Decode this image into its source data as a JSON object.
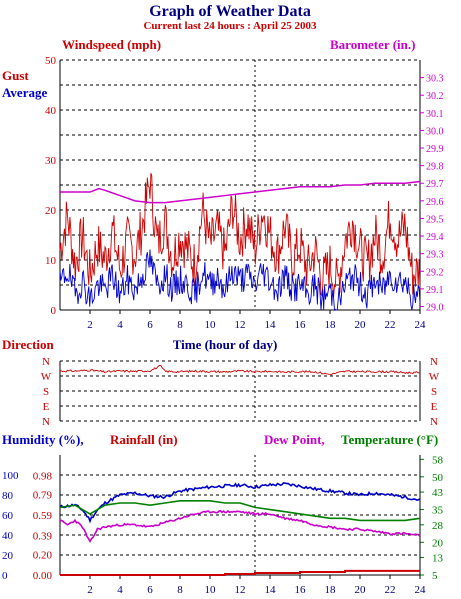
{
  "title": "Graph of Weather Data",
  "subtitle": "Current last 24 hours : April 25 2003",
  "colors": {
    "gust": "#cc0000",
    "average": "#0000cc",
    "barometer": "#cc00cc",
    "direction": "#cc0000",
    "humidity": "#0000cc",
    "rainfall": "#cc0000",
    "dew_point": "#cc00cc",
    "temperature": "#008000",
    "grid": "#000000"
  },
  "chart_data": [
    {
      "type": "line",
      "labels": {
        "left": "Windspeed (mph)",
        "right": "Barometer (in.)",
        "series_gust": "Gust",
        "series_average": "Average",
        "x_axis": "Time (hour of day)"
      },
      "x_ticks": [
        "2",
        "4",
        "6",
        "8",
        "10",
        "12",
        "14",
        "16",
        "18",
        "20",
        "22",
        "24"
      ],
      "xlim": [
        0,
        24
      ],
      "left_ticks": [
        "0",
        "10",
        "20",
        "30",
        "40",
        "50"
      ],
      "ylim_left": [
        0,
        50
      ],
      "right_ticks": [
        "29.0",
        "29.1",
        "29.2",
        "29.3",
        "29.4",
        "29.5",
        "29.6",
        "29.7",
        "29.8",
        "29.9",
        "30.0",
        "30.1",
        "30.2",
        "30.3"
      ],
      "ylim_right": [
        28.98,
        30.4
      ],
      "series": [
        {
          "name": "Gust",
          "x": [
            0,
            0.5,
            1,
            1.5,
            2,
            2.5,
            3,
            3.5,
            4,
            4.5,
            5,
            5.5,
            6,
            6.5,
            7,
            7.5,
            8,
            8.5,
            9,
            9.5,
            10,
            10.5,
            11,
            11.5,
            12,
            12.5,
            13,
            13.5,
            14,
            14.5,
            15,
            15.5,
            16,
            16.5,
            17,
            17.5,
            18,
            18.5,
            19,
            19.5,
            20,
            20.5,
            21,
            21.5,
            22,
            22.5,
            23,
            23.5,
            24
          ],
          "values": [
            12,
            19,
            9,
            15,
            7,
            13,
            10,
            16,
            8,
            14,
            11,
            17,
            26,
            13,
            18,
            10,
            15,
            12,
            9,
            20,
            13,
            16,
            11,
            21,
            14,
            18,
            12,
            20,
            15,
            11,
            17,
            10,
            13,
            8,
            12,
            6,
            9,
            5,
            14,
            18,
            12,
            9,
            15,
            11,
            19,
            14,
            17,
            7,
            8
          ]
        },
        {
          "name": "Average",
          "x": [
            0,
            0.5,
            1,
            1.5,
            2,
            2.5,
            3,
            3.5,
            4,
            4.5,
            5,
            5.5,
            6,
            6.5,
            7,
            7.5,
            8,
            8.5,
            9,
            9.5,
            10,
            10.5,
            11,
            11.5,
            12,
            12.5,
            13,
            13.5,
            14,
            14.5,
            15,
            15.5,
            16,
            16.5,
            17,
            17.5,
            18,
            18.5,
            19,
            19.5,
            20,
            20.5,
            21,
            21.5,
            22,
            22.5,
            23,
            23.5,
            24
          ],
          "values": [
            5,
            8,
            3,
            6,
            2,
            5,
            4,
            7,
            3,
            6,
            4,
            7,
            10,
            5,
            7,
            4,
            6,
            5,
            3,
            8,
            5,
            7,
            4,
            8,
            6,
            7,
            5,
            8,
            6,
            4,
            7,
            4,
            5,
            3,
            5,
            2,
            4,
            1,
            5,
            7,
            5,
            3,
            6,
            4,
            7,
            6,
            6,
            2,
            3
          ]
        },
        {
          "name": "Barometer",
          "axis": "right",
          "x": [
            0,
            1,
            2,
            2.6,
            3,
            4,
            5,
            6,
            7,
            8,
            9,
            10,
            11,
            12,
            13,
            14,
            15,
            16,
            17,
            18,
            19,
            20,
            21,
            22,
            23,
            24
          ],
          "values": [
            29.65,
            29.65,
            29.65,
            29.67,
            29.66,
            29.63,
            29.6,
            29.59,
            29.59,
            29.6,
            29.61,
            29.62,
            29.63,
            29.64,
            29.65,
            29.66,
            29.67,
            29.68,
            29.68,
            29.68,
            29.69,
            29.69,
            29.7,
            29.7,
            29.7,
            29.71
          ]
        }
      ]
    },
    {
      "type": "line",
      "labels": {
        "left": "Direction"
      },
      "direction_ticks": [
        "N",
        "W",
        "S",
        "E",
        "N"
      ],
      "xlim": [
        0,
        24
      ],
      "series": [
        {
          "name": "Direction",
          "x": [
            0,
            1,
            2,
            3,
            4,
            5,
            6,
            6.7,
            7,
            8,
            9,
            10,
            11,
            12,
            13,
            14,
            15,
            16,
            17,
            18,
            19,
            20,
            21,
            22,
            23,
            24
          ],
          "values": [
            300,
            300,
            305,
            295,
            300,
            298,
            302,
            330,
            298,
            296,
            300,
            297,
            295,
            300,
            296,
            298,
            294,
            297,
            295,
            280,
            298,
            296,
            296,
            296,
            290,
            290
          ]
        }
      ]
    },
    {
      "type": "line",
      "labels": {
        "humidity": "Humidity (%),",
        "rainfall": "Rainfall (in)",
        "dew_point": "Dew Point,",
        "temperature": "Temperature (°F)"
      },
      "x_ticks": [
        "2",
        "4",
        "6",
        "8",
        "10",
        "12",
        "14",
        "16",
        "18",
        "20",
        "22",
        "24"
      ],
      "xlim": [
        0,
        24
      ],
      "humidity_ticks": [
        "0",
        "20",
        "40",
        "60",
        "80",
        "100"
      ],
      "humidity_lim": [
        0,
        120
      ],
      "rainfall_ticks": [
        "0.00",
        "0.20",
        "0.39",
        "0.59",
        "0.79",
        "0.98"
      ],
      "rainfall_lim": [
        0,
        1.18
      ],
      "temperature_ticks": [
        "5",
        "13",
        "20",
        "28",
        "35",
        "43",
        "50",
        "58"
      ],
      "temperature_lim": [
        5,
        60
      ],
      "series": [
        {
          "name": "Humidity",
          "axis": "humidity",
          "x": [
            0,
            1,
            1.5,
            2,
            2.5,
            3,
            4,
            5,
            6,
            7,
            8,
            9,
            10,
            11,
            12,
            13,
            14,
            15,
            16,
            17,
            18,
            19,
            20,
            21,
            22,
            23,
            24
          ],
          "values": [
            68,
            70,
            65,
            55,
            65,
            72,
            80,
            82,
            79,
            78,
            84,
            86,
            88,
            89,
            90,
            88,
            90,
            91,
            89,
            86,
            84,
            82,
            80,
            82,
            80,
            78,
            75
          ]
        },
        {
          "name": "Rainfall",
          "axis": "rainfall",
          "x": [
            0,
            2,
            4,
            6,
            8,
            10,
            11,
            12,
            13,
            14,
            15,
            16,
            17,
            18,
            19,
            20,
            22,
            24
          ],
          "values": [
            0.0,
            0.0,
            0.0,
            0.0,
            0.0,
            0.0,
            0.01,
            0.01,
            0.02,
            0.02,
            0.02,
            0.03,
            0.03,
            0.03,
            0.04,
            0.04,
            0.04,
            0.04
          ]
        },
        {
          "name": "Dew Point",
          "axis": "temperature",
          "x": [
            0,
            0.5,
            1,
            1.5,
            2,
            2.5,
            3,
            4,
            5,
            6,
            7,
            8,
            9,
            10,
            11,
            12,
            13,
            14,
            15,
            16,
            17,
            18,
            19,
            20,
            21,
            22,
            23,
            24
          ],
          "values": [
            30,
            28,
            30,
            27,
            20,
            26,
            27,
            28,
            28,
            27,
            29,
            31,
            33,
            34,
            34,
            34,
            33,
            33,
            31,
            30,
            28,
            27,
            26,
            26,
            25,
            24,
            24,
            23
          ]
        },
        {
          "name": "Temperature",
          "axis": "temperature",
          "x": [
            0,
            1,
            1.5,
            2,
            2.5,
            3,
            4,
            5,
            6,
            7,
            8,
            9,
            10,
            11,
            12,
            13,
            14,
            15,
            16,
            17,
            18,
            19,
            20,
            21,
            22,
            23,
            24
          ],
          "values": [
            36,
            37,
            35,
            33,
            35,
            37,
            38,
            38,
            37,
            38,
            39,
            39,
            39,
            38,
            38,
            36,
            35,
            34,
            33,
            32,
            31,
            31,
            30,
            30,
            30,
            30,
            31
          ]
        }
      ]
    }
  ]
}
